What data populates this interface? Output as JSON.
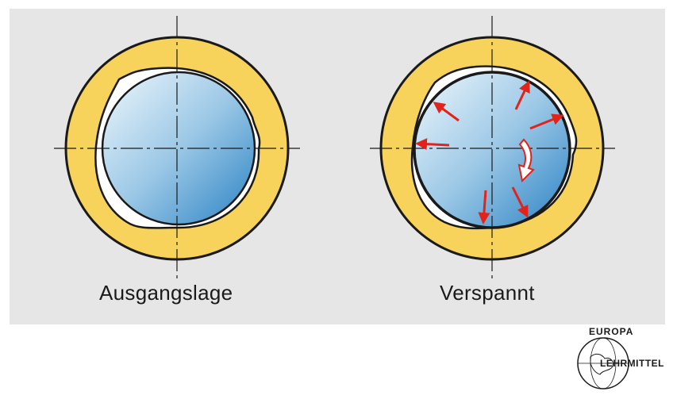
{
  "figure": {
    "left_label": "Ausgangslage",
    "right_label": "Verspannt"
  },
  "logo": {
    "top_text": "EUROPA",
    "bottom_text": "LEHRMITTEL"
  },
  "colors": {
    "background_panel": "#e6e6e6",
    "ring": "#f7d35c",
    "outline": "#1a1a1a",
    "shaft_light": "#e8f4fb",
    "shaft_dark": "#2f86c6",
    "arrow": "#e2231a"
  },
  "icons": [
    "red-force-arrow",
    "rotation-arrow",
    "europa-lehrmittel-logo"
  ]
}
